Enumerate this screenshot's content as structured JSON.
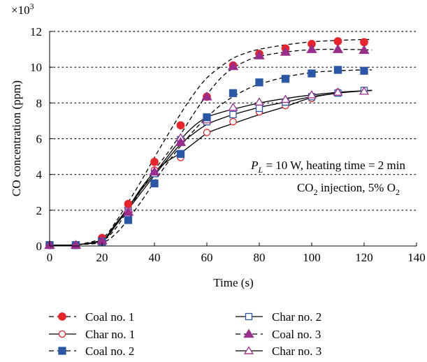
{
  "chart_data": {
    "type": "line",
    "title": "",
    "xlabel": "Time (s)",
    "ylabel": "CO concentration (ppm)",
    "y_multiplier": "×10",
    "y_multiplier_exp": "3",
    "xlim": [
      0,
      140
    ],
    "ylim": [
      0,
      12
    ],
    "x_ticks": [
      0,
      20,
      40,
      60,
      80,
      100,
      120,
      140
    ],
    "y_ticks": [
      0,
      2,
      4,
      6,
      8,
      10,
      12
    ],
    "grid": "horizontal dotted",
    "legend_position": "bottom",
    "annotation": {
      "line1_p": "P",
      "line1_sub": "L",
      "line1_rest": " = 10 W, heating time  = 2 min",
      "line2_a": "CO",
      "line2_sub": "2",
      "line2_b": " injection, 5% O",
      "line2_sub2": "2"
    },
    "x": [
      0,
      10,
      20,
      30,
      40,
      50,
      60,
      70,
      80,
      90,
      100,
      110,
      120
    ],
    "series": [
      {
        "name": "Coal no. 1",
        "marker": "circle",
        "filled": true,
        "dashed": true,
        "color": "#e8232a",
        "values": [
          0.05,
          0.05,
          0.45,
          2.35,
          4.7,
          6.75,
          8.35,
          10.1,
          10.75,
          11.05,
          11.3,
          11.45,
          11.4
        ],
        "curve_x": [
          0,
          10,
          20,
          25,
          30,
          35,
          40,
          45,
          50,
          55,
          60,
          65,
          70,
          75,
          80,
          90,
          100,
          110,
          120,
          123
        ],
        "curve_y": [
          0.05,
          0.07,
          0.45,
          1.3,
          2.45,
          3.65,
          4.95,
          6.2,
          7.4,
          8.5,
          9.4,
          10.0,
          10.5,
          10.8,
          11.0,
          11.25,
          11.42,
          11.5,
          11.55,
          11.55
        ]
      },
      {
        "name": "Char no. 1",
        "marker": "circle",
        "filled": false,
        "dashed": false,
        "color": "#e8232a",
        "values": [
          0.05,
          0.05,
          0.3,
          2.1,
          4.25,
          4.95,
          6.35,
          6.95,
          7.5,
          7.85,
          8.25,
          8.6,
          8.7
        ],
        "curve_x": [
          0,
          10,
          20,
          25,
          30,
          35,
          40,
          45,
          50,
          55,
          60,
          65,
          70,
          80,
          90,
          100,
          110,
          120,
          123
        ],
        "curve_y": [
          0.05,
          0.07,
          0.3,
          1.1,
          2.15,
          3.25,
          4.15,
          4.75,
          5.2,
          5.75,
          6.3,
          6.6,
          6.85,
          7.35,
          7.8,
          8.3,
          8.55,
          8.68,
          8.7
        ]
      },
      {
        "name": "Coal no. 2",
        "marker": "square",
        "filled": true,
        "dashed": true,
        "color": "#2b57a7",
        "values": [
          0.05,
          0.05,
          0.25,
          1.45,
          3.5,
          5.15,
          7.2,
          8.55,
          9.15,
          9.35,
          9.65,
          9.85,
          9.8
        ],
        "curve_x": [
          0,
          10,
          20,
          25,
          30,
          35,
          40,
          45,
          50,
          55,
          60,
          65,
          70,
          75,
          80,
          90,
          100,
          110,
          120,
          123
        ],
        "curve_y": [
          0.05,
          0.07,
          0.2,
          0.65,
          1.5,
          2.5,
          3.6,
          4.65,
          5.6,
          6.45,
          7.2,
          7.85,
          8.35,
          8.75,
          9.05,
          9.45,
          9.7,
          9.8,
          9.85,
          9.85
        ]
      },
      {
        "name": "Char no. 2",
        "marker": "square",
        "filled": false,
        "dashed": false,
        "color": "#2b57a7",
        "values": [
          0.05,
          0.05,
          0.35,
          2.0,
          4.05,
          5.95,
          6.95,
          7.35,
          7.7,
          8.05,
          8.35,
          8.55,
          8.7
        ],
        "curve_x": [
          0,
          10,
          20,
          25,
          30,
          35,
          40,
          45,
          50,
          55,
          60,
          65,
          70,
          80,
          90,
          100,
          110,
          120,
          123
        ],
        "curve_y": [
          0.05,
          0.07,
          0.35,
          1.15,
          2.05,
          3.0,
          3.95,
          4.85,
          5.7,
          6.3,
          6.8,
          7.1,
          7.35,
          7.75,
          8.05,
          8.35,
          8.55,
          8.68,
          8.7
        ]
      },
      {
        "name": "Coal no. 3",
        "marker": "triangle",
        "filled": true,
        "dashed": true,
        "color": "#9b2d8c",
        "values": [
          0.05,
          0.05,
          0.3,
          1.9,
          4.15,
          5.8,
          8.35,
          10.05,
          10.65,
          10.85,
          11.0,
          11.0,
          10.95
        ],
        "curve_x": [
          0,
          10,
          20,
          25,
          30,
          35,
          40,
          45,
          50,
          55,
          60,
          65,
          70,
          75,
          80,
          90,
          100,
          110,
          120,
          123
        ],
        "curve_y": [
          0.05,
          0.07,
          0.3,
          0.95,
          2.05,
          3.15,
          4.25,
          5.2,
          6.25,
          7.4,
          8.45,
          9.35,
          9.95,
          10.35,
          10.6,
          10.85,
          10.98,
          11.0,
          10.98,
          10.95
        ]
      },
      {
        "name": "Char no. 3",
        "marker": "triangle",
        "filled": false,
        "dashed": false,
        "color": "#9b2d8c",
        "values": [
          0.05,
          0.05,
          0.35,
          2.05,
          4.15,
          6.05,
          7.05,
          7.75,
          8.05,
          8.2,
          8.45,
          8.6,
          8.65
        ],
        "curve_x": [
          0,
          10,
          20,
          25,
          30,
          35,
          40,
          45,
          50,
          55,
          60,
          65,
          70,
          80,
          90,
          100,
          110,
          120,
          123
        ],
        "curve_y": [
          0.05,
          0.07,
          0.35,
          1.2,
          2.15,
          3.15,
          4.05,
          5.0,
          5.95,
          6.7,
          7.2,
          7.45,
          7.65,
          8.0,
          8.25,
          8.45,
          8.6,
          8.68,
          8.7
        ]
      }
    ]
  }
}
